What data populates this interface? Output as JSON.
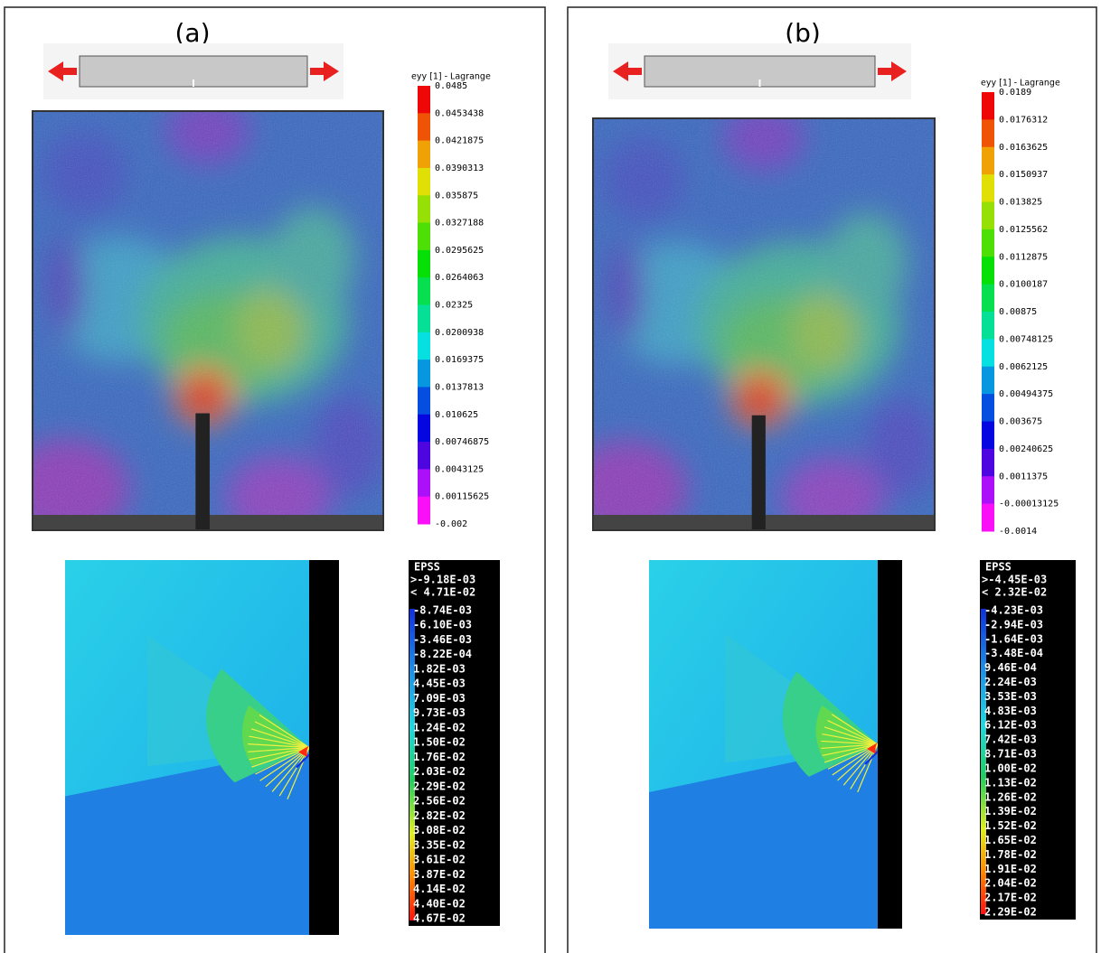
{
  "panels": [
    {
      "label": "(a)",
      "dic": {
        "title": "eyy [1] - Lagrange",
        "ticks": [
          "0.0485",
          "0.0453438",
          "0.0421875",
          "0.0390313",
          "0.035875",
          "0.0327188",
          "0.0295625",
          "0.0264063",
          "0.02325",
          "0.0200938",
          "0.0169375",
          "0.0137813",
          "0.010625",
          "0.00746875",
          "0.0043125",
          "0.00115625",
          "-0.002"
        ]
      },
      "fe": {
        "title": "EPSS",
        "max": ">-9.18E-03",
        "min": "< 4.71E-02",
        "ticks": [
          "-8.74E-03",
          "-6.10E-03",
          "-3.46E-03",
          "-8.22E-04",
          "1.82E-03",
          "4.45E-03",
          "7.09E-03",
          "9.73E-03",
          "1.24E-02",
          "1.50E-02",
          "1.76E-02",
          "2.03E-02",
          "2.29E-02",
          "2.56E-02",
          "2.82E-02",
          "3.08E-02",
          "3.35E-02",
          "3.61E-02",
          "3.87E-02",
          "4.14E-02",
          "4.40E-02",
          "4.67E-02"
        ]
      }
    },
    {
      "label": "(b)",
      "dic": {
        "title": "eyy [1] - Lagrange",
        "ticks": [
          "0.0189",
          "0.0176312",
          "0.0163625",
          "0.0150937",
          "0.013825",
          "0.0125562",
          "0.0112875",
          "0.0100187",
          "0.00875",
          "0.00748125",
          "0.0062125",
          "0.00494375",
          "0.003675",
          "0.00240625",
          "0.0011375",
          "-0.00013125",
          "-0.0014"
        ]
      },
      "fe": {
        "title": "EPSS",
        "max": ">-4.45E-03",
        "min": "< 2.32E-02",
        "ticks": [
          "-4.23E-03",
          "-2.94E-03",
          "-1.64E-03",
          "-3.48E-04",
          "9.46E-04",
          "2.24E-03",
          "3.53E-03",
          "4.83E-03",
          "6.12E-03",
          "7.42E-03",
          "8.71E-03",
          "1.00E-02",
          "1.13E-02",
          "1.26E-02",
          "1.39E-02",
          "1.52E-02",
          "1.65E-02",
          "1.78E-02",
          "1.91E-02",
          "2.04E-02",
          "2.17E-02",
          "2.29E-02"
        ]
      }
    }
  ]
}
